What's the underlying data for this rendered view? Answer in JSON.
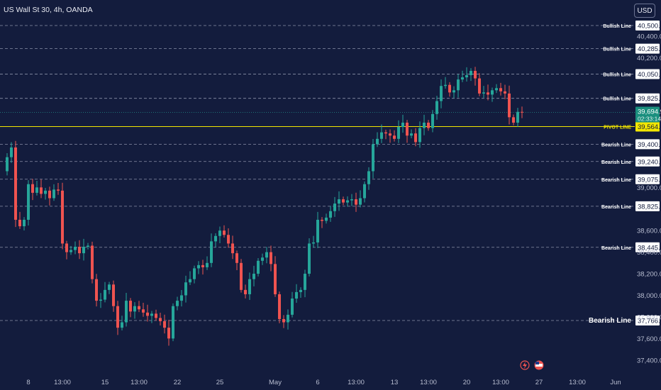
{
  "header": {
    "title": "US Wall St 30, 4h, OANDA",
    "currency_button": "USD"
  },
  "chart_data": {
    "type": "candlestick",
    "title": "US Wall St 30, 4h, OANDA",
    "ylim": [
      37250,
      40650
    ],
    "price_ticks": [
      {
        "label": "40,400.0",
        "v": 40400
      },
      {
        "label": "40,200.0",
        "v": 40200
      },
      {
        "label": "39,000.0",
        "v": 39000
      },
      {
        "label": "38,600.0",
        "v": 38600
      },
      {
        "label": "38,400.0",
        "v": 38400
      },
      {
        "label": "38,200.0",
        "v": 38200
      },
      {
        "label": "38,000.0",
        "v": 38000
      },
      {
        "label": "37,800.0",
        "v": 37800
      },
      {
        "label": "37,600.0",
        "v": 37600
      },
      {
        "label": "37,400.0",
        "v": 37400
      }
    ],
    "time_ticks": [
      {
        "label": "8",
        "i": 6
      },
      {
        "label": "13:00",
        "i": 14
      },
      {
        "label": "15",
        "i": 24
      },
      {
        "label": "13:00",
        "i": 32
      },
      {
        "label": "22",
        "i": 41
      },
      {
        "label": "25",
        "i": 51
      },
      {
        "label": "May",
        "i": 64
      },
      {
        "label": "6",
        "i": 74
      },
      {
        "label": "13:00",
        "i": 83
      },
      {
        "label": "13",
        "i": 92
      },
      {
        "label": "13:00",
        "i": 100
      },
      {
        "label": "20",
        "i": 109
      },
      {
        "label": "13:00",
        "i": 117
      },
      {
        "label": "27",
        "i": 126
      },
      {
        "label": "13:00",
        "i": 135
      },
      {
        "label": "Jun",
        "i": 144
      }
    ],
    "horizontal_lines": [
      {
        "name": "Bullish Line",
        "value_label": "40,500.0",
        "v": 40500,
        "kind": "bull"
      },
      {
        "name": "Bullish Line",
        "value_label": "40,285.4",
        "v": 40285.4,
        "kind": "bull"
      },
      {
        "name": "Bullish Line",
        "value_label": "40,050.3",
        "v": 40050.3,
        "kind": "bull"
      },
      {
        "name": "Bullish Line",
        "value_label": "39,825.2",
        "v": 39825.2,
        "kind": "bull"
      },
      {
        "name": "PIVOT LINE",
        "value_label": "39,564.0",
        "v": 39564,
        "kind": "pivot"
      },
      {
        "name": "Bearish Line",
        "value_label": "39,400.0",
        "v": 39400,
        "kind": "bear"
      },
      {
        "name": "Bearish Line",
        "value_label": "39,240.0",
        "v": 39240,
        "kind": "bear"
      },
      {
        "name": "Bearish Line",
        "value_label": "39,075.8",
        "v": 39075.8,
        "kind": "bear"
      },
      {
        "name": "Bearish Line",
        "value_label": "38,825.2",
        "v": 38825.2,
        "kind": "bear"
      },
      {
        "name": "Bearish Line",
        "value_label": "38,445.0",
        "v": 38445,
        "kind": "bear"
      },
      {
        "name": "Bearish Line",
        "value_label": "37,766.6",
        "v": 37766.6,
        "kind": "bear-bold"
      }
    ],
    "last_price": {
      "value_label": "39,694.9",
      "countdown": "02:33:14",
      "v": 39694.9
    },
    "close_path": [
      [
        0,
        39150
      ],
      [
        1,
        39280
      ],
      [
        2,
        39370
      ],
      [
        3,
        38700
      ],
      [
        4,
        38640
      ],
      [
        5,
        38700
      ],
      [
        6,
        39030
      ],
      [
        7,
        38950
      ],
      [
        8,
        39000
      ],
      [
        9,
        38940
      ],
      [
        10,
        38970
      ],
      [
        11,
        38900
      ],
      [
        12,
        38980
      ],
      [
        13,
        38970
      ],
      [
        14,
        38480
      ],
      [
        15,
        38400
      ],
      [
        16,
        38420
      ],
      [
        17,
        38450
      ],
      [
        18,
        38390
      ],
      [
        19,
        38450
      ],
      [
        20,
        38460
      ],
      [
        21,
        38150
      ],
      [
        22,
        37950
      ],
      [
        23,
        37960
      ],
      [
        24,
        38050
      ],
      [
        25,
        38100
      ],
      [
        26,
        37900
      ],
      [
        27,
        37700
      ],
      [
        28,
        37750
      ],
      [
        29,
        37950
      ],
      [
        30,
        37850
      ],
      [
        31,
        37900
      ],
      [
        32,
        37870
      ],
      [
        33,
        37840
      ],
      [
        34,
        37810
      ],
      [
        35,
        37830
      ],
      [
        36,
        37790
      ],
      [
        37,
        37760
      ],
      [
        38,
        37700
      ],
      [
        39,
        37600
      ],
      [
        40,
        37900
      ],
      [
        41,
        37950
      ],
      [
        42,
        38000
      ],
      [
        43,
        38120
      ],
      [
        44,
        38150
      ],
      [
        45,
        38250
      ],
      [
        46,
        38280
      ],
      [
        47,
        38260
      ],
      [
        48,
        38300
      ],
      [
        49,
        38500
      ],
      [
        50,
        38550
      ],
      [
        51,
        38600
      ],
      [
        52,
        38560
      ],
      [
        53,
        38480
      ],
      [
        54,
        38390
      ],
      [
        55,
        38300
      ],
      [
        56,
        38050
      ],
      [
        57,
        38010
      ],
      [
        58,
        38150
      ],
      [
        59,
        38200
      ],
      [
        60,
        38320
      ],
      [
        61,
        38350
      ],
      [
        62,
        38400
      ],
      [
        63,
        38290
      ],
      [
        64,
        38010
      ],
      [
        65,
        37780
      ],
      [
        66,
        37750
      ],
      [
        67,
        37820
      ],
      [
        68,
        37970
      ],
      [
        69,
        38030
      ],
      [
        70,
        38050
      ],
      [
        71,
        38200
      ],
      [
        72,
        38480
      ],
      [
        73,
        38490
      ],
      [
        74,
        38700
      ],
      [
        75,
        38690
      ],
      [
        76,
        38720
      ],
      [
        77,
        38780
      ],
      [
        78,
        38850
      ],
      [
        79,
        38890
      ],
      [
        80,
        38860
      ],
      [
        81,
        38880
      ],
      [
        82,
        38890
      ],
      [
        83,
        38840
      ],
      [
        84,
        38900
      ],
      [
        85,
        39030
      ],
      [
        86,
        39150
      ],
      [
        87,
        39400
      ],
      [
        88,
        39450
      ],
      [
        89,
        39510
      ],
      [
        90,
        39500
      ],
      [
        91,
        39480
      ],
      [
        92,
        39450
      ],
      [
        93,
        39560
      ],
      [
        94,
        39600
      ],
      [
        95,
        39480
      ],
      [
        96,
        39500
      ],
      [
        97,
        39420
      ],
      [
        98,
        39550
      ],
      [
        99,
        39600
      ],
      [
        100,
        39550
      ],
      [
        101,
        39680
      ],
      [
        102,
        39800
      ],
      [
        103,
        39940
      ],
      [
        104,
        39950
      ],
      [
        105,
        39880
      ],
      [
        106,
        39900
      ],
      [
        107,
        40000
      ],
      [
        108,
        40020
      ],
      [
        109,
        40040
      ],
      [
        110,
        40080
      ],
      [
        111,
        40010
      ],
      [
        112,
        39870
      ],
      [
        113,
        39880
      ],
      [
        114,
        39860
      ],
      [
        115,
        39900
      ],
      [
        116,
        39920
      ],
      [
        117,
        39890
      ],
      [
        118,
        39870
      ],
      [
        119,
        39650
      ],
      [
        120,
        39600
      ],
      [
        121,
        39700
      ],
      [
        122,
        39694.9
      ]
    ],
    "footer_icons": [
      "lightning-icon",
      "us-flag-icon"
    ]
  }
}
